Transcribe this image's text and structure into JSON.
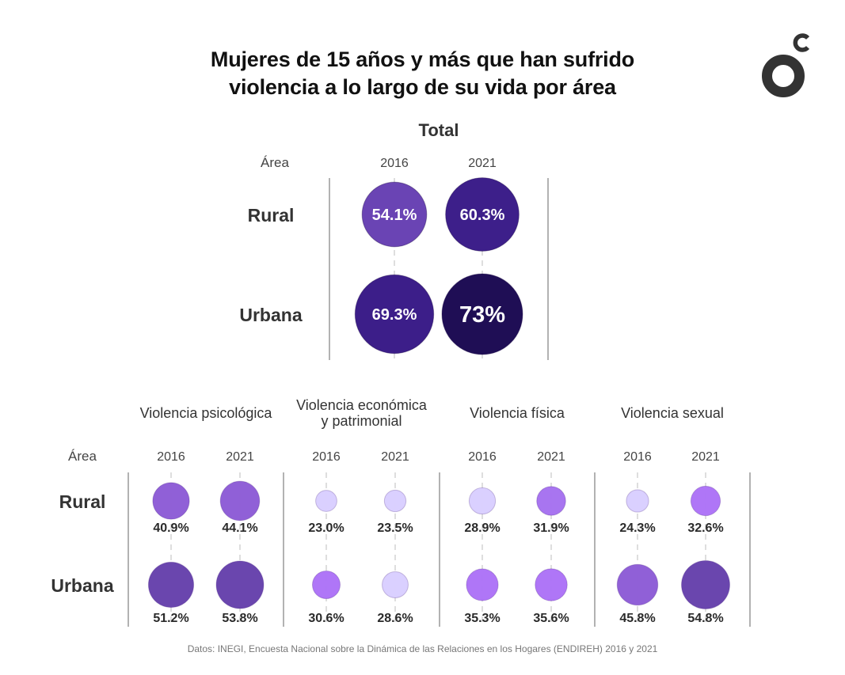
{
  "title_lines": [
    "Mujeres de 15 años y más que han sufrido",
    "violencia a lo largo de su vida por área"
  ],
  "logo": {
    "icon": "brand-o-c-logo",
    "color": "#333333"
  },
  "source": "Datos: INEGI, Encuesta Nacional sobre la Dinámica de las Relaciones en los Hogares (ENDIREH) 2016 y 2021",
  "chart_data": [
    {
      "type": "bubble-matrix",
      "title": "Total",
      "row_header": "Área",
      "rows": [
        "Rural",
        "Urbana"
      ],
      "columns": [
        "2016",
        "2021"
      ],
      "series": [
        {
          "name": "Rural",
          "values": [
            54.1,
            60.3
          ],
          "labels": [
            "54.1%",
            "60.3%"
          ]
        },
        {
          "name": "Urbana",
          "values": [
            69.3,
            73
          ],
          "labels": [
            "69.3%",
            "73%"
          ]
        }
      ],
      "colors": {
        "Rural-2016": "#6a44b4",
        "Rural-2021": "#3d1f8a",
        "Urbana-2016": "#3c1e89",
        "Urbana-2021": "#1f0e55"
      },
      "label_position": "inside",
      "unit": "%"
    },
    {
      "type": "bubble-matrix",
      "title": "Violencia psicológica",
      "row_header": "Área",
      "rows": [
        "Rural",
        "Urbana"
      ],
      "columns": [
        "2016",
        "2021"
      ],
      "series": [
        {
          "name": "Rural",
          "values": [
            40.9,
            44.1
          ],
          "labels": [
            "40.9%",
            "44.1%"
          ]
        },
        {
          "name": "Urbana",
          "values": [
            51.2,
            53.8
          ],
          "labels": [
            "51.2%",
            "53.8%"
          ]
        }
      ],
      "colors": {
        "Rural-2016": "#8c5bd6",
        "Rural-2021": "#8c5bd6",
        "Urbana-2016": "#6540ab",
        "Urbana-2021": "#6540ab"
      },
      "label_position": "below",
      "unit": "%"
    },
    {
      "type": "bubble-matrix",
      "title": "Violencia económica y patrimonial",
      "title_lines": [
        "Violencia económica",
        "y patrimonial"
      ],
      "rows": [
        "Rural",
        "Urbana"
      ],
      "columns": [
        "2016",
        "2021"
      ],
      "series": [
        {
          "name": "Rural",
          "values": [
            23.0,
            23.5
          ],
          "labels": [
            "23.0%",
            "23.5%"
          ]
        },
        {
          "name": "Urbana",
          "values": [
            30.6,
            28.6
          ],
          "labels": [
            "30.6%",
            "28.6%"
          ]
        }
      ],
      "colors": {
        "Rural-2016": "#d9ceff",
        "Rural-2021": "#d9ceff",
        "Urbana-2016": "#ac72f7",
        "Urbana-2021": "#d9ceff"
      },
      "label_position": "below",
      "unit": "%"
    },
    {
      "type": "bubble-matrix",
      "title": "Violencia física",
      "rows": [
        "Rural",
        "Urbana"
      ],
      "columns": [
        "2016",
        "2021"
      ],
      "series": [
        {
          "name": "Rural",
          "values": [
            28.9,
            31.9
          ],
          "labels": [
            "28.9%",
            "31.9%"
          ]
        },
        {
          "name": "Urbana",
          "values": [
            35.3,
            35.6
          ],
          "labels": [
            "35.3%",
            "35.6%"
          ]
        }
      ],
      "colors": {
        "Rural-2016": "#d9ceff",
        "Rural-2021": "#a571f0",
        "Urbana-2016": "#ac72f7",
        "Urbana-2021": "#ac72f7"
      },
      "label_position": "below",
      "unit": "%"
    },
    {
      "type": "bubble-matrix",
      "title": "Violencia sexual",
      "rows": [
        "Rural",
        "Urbana"
      ],
      "columns": [
        "2016",
        "2021"
      ],
      "series": [
        {
          "name": "Rural",
          "values": [
            24.3,
            32.6
          ],
          "labels": [
            "24.3%",
            "32.6%"
          ]
        },
        {
          "name": "Urbana",
          "values": [
            45.8,
            54.8
          ],
          "labels": [
            "45.8%",
            "54.8%"
          ]
        }
      ],
      "colors": {
        "Rural-2016": "#d9ceff",
        "Rural-2021": "#ac72f7",
        "Urbana-2016": "#8c5bd6",
        "Urbana-2021": "#6540ab"
      },
      "label_position": "below",
      "unit": "%"
    }
  ],
  "bottom_row_header": "Área",
  "bottom_rows": [
    "Rural",
    "Urbana"
  ]
}
